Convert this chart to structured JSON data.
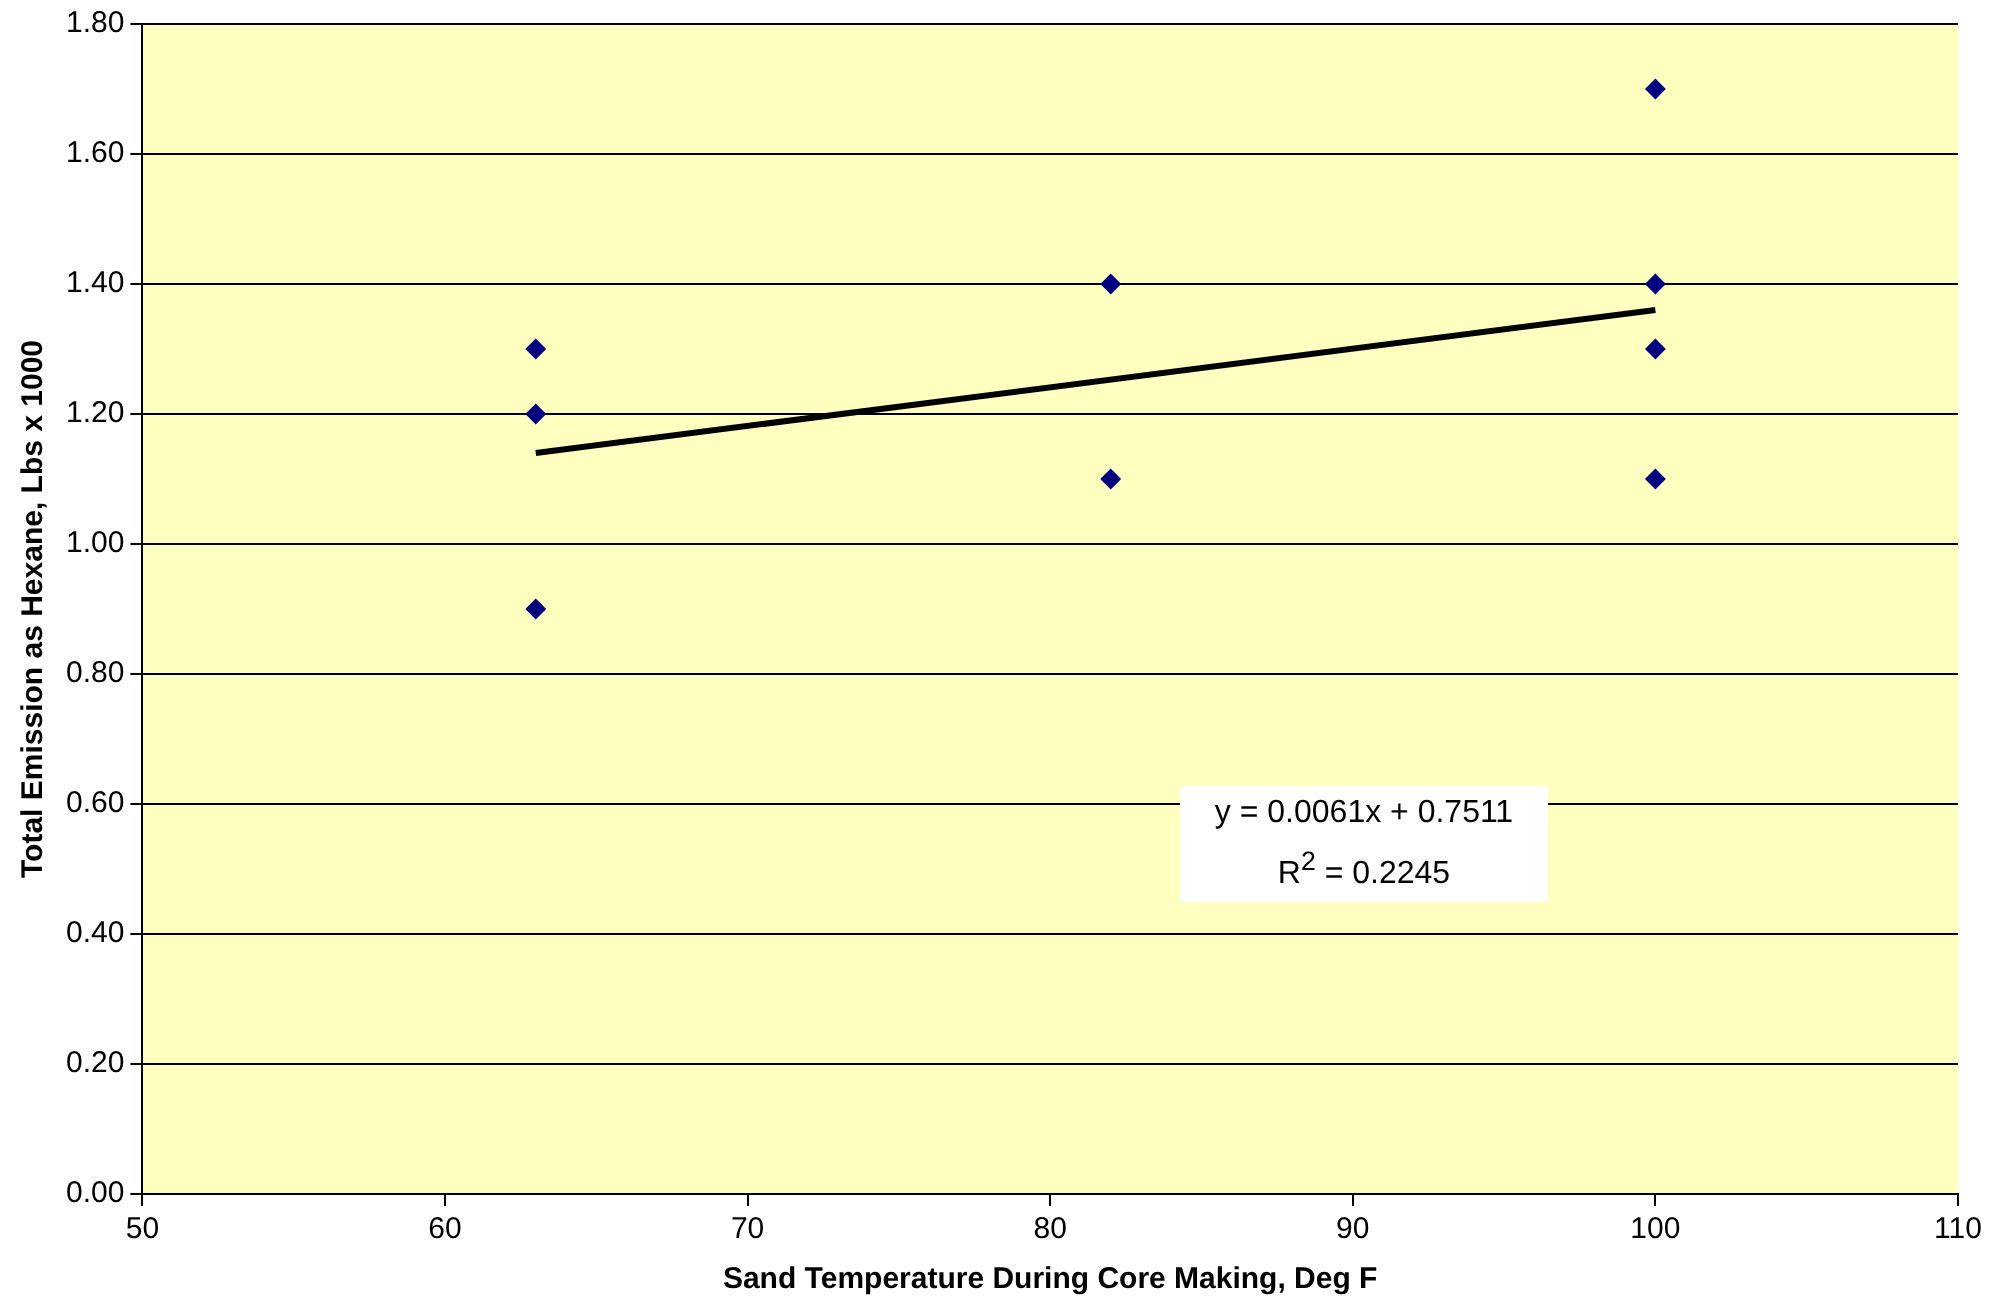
{
  "chart_data": {
    "type": "scatter",
    "xlabel": "Sand Temperature During Core Making, Deg F",
    "ylabel": "Total Emission as Hexane, Lbs x 1000",
    "xlim": [
      50,
      110
    ],
    "xticks": [
      50,
      60,
      70,
      80,
      90,
      100,
      110
    ],
    "ylim": [
      0,
      1.8
    ],
    "yticks": [
      {
        "value": 0,
        "label": "0.00"
      },
      {
        "value": 0.2,
        "label": "0.20"
      },
      {
        "value": 0.4,
        "label": "0.40"
      },
      {
        "value": 0.6,
        "label": "0.60"
      },
      {
        "value": 0.8,
        "label": "0.80"
      },
      {
        "value": 1,
        "label": "1.00"
      },
      {
        "value": 1.2,
        "label": "1.20"
      },
      {
        "value": 1.4,
        "label": "1.40"
      },
      {
        "value": 1.6,
        "label": "1.60"
      },
      {
        "value": 1.8,
        "label": "1.80"
      }
    ],
    "grid": "y",
    "legend": false,
    "marker": "diamond",
    "series": [
      {
        "type": "scatter",
        "color": "#000080",
        "x": [
          63,
          63,
          63,
          82,
          82,
          100,
          100,
          100,
          100
        ],
        "values": [
          1.3,
          1.2,
          0.9,
          1.4,
          1.1,
          1.7,
          1.4,
          1.3,
          1.1
        ]
      },
      {
        "type": "line",
        "color": "#000000",
        "marker": "none",
        "x": [
          63,
          100
        ],
        "values": [
          1.14,
          1.36
        ]
      }
    ],
    "annotations": [
      "y = 0.0061x + 0.7511",
      "R$^{2}$ = 0.2245"
    ]
  }
}
